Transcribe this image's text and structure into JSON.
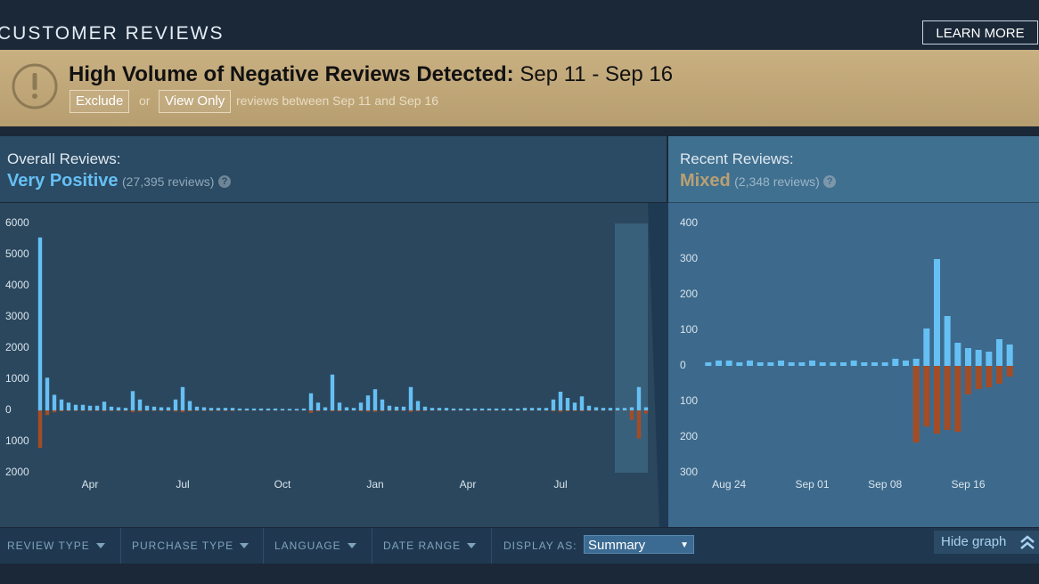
{
  "header": {
    "title": "CUSTOMER REVIEWS",
    "button": "LEARN MORE"
  },
  "banner": {
    "title": "High Volume of Negative Reviews Detected:",
    "dates": "Sep 11 - Sep 16",
    "exclude": "Exclude",
    "or": "or",
    "view_only": "View Only",
    "note": "reviews between Sep 11 and Sep 16"
  },
  "overall": {
    "label": "Overall Reviews:",
    "rating": "Very Positive",
    "count": "(27,395 reviews)",
    "help": "?"
  },
  "recent": {
    "label": "Recent Reviews:",
    "rating": "Mixed",
    "count": "(2,348 reviews)",
    "help": "?"
  },
  "chart_data": [
    {
      "type": "bar",
      "categories": [
        null,
        null,
        null,
        null,
        null,
        null,
        null,
        "Apr",
        null,
        null,
        null,
        null,
        null,
        null,
        null,
        null,
        null,
        null,
        null,
        null,
        "Jul",
        null,
        null,
        null,
        null,
        null,
        null,
        null,
        null,
        null,
        null,
        null,
        null,
        null,
        "Oct",
        null,
        null,
        null,
        null,
        null,
        null,
        null,
        null,
        null,
        null,
        null,
        null,
        "Jan",
        null,
        null,
        null,
        null,
        null,
        null,
        null,
        null,
        null,
        null,
        null,
        null,
        "Apr",
        null,
        null,
        null,
        null,
        null,
        null,
        null,
        null,
        null,
        null,
        null,
        null,
        "Jul",
        null,
        null,
        null,
        null,
        null,
        null,
        null,
        null,
        null,
        null,
        null,
        null
      ],
      "series": [
        {
          "color": "#66c0f4",
          "values": [
            5550,
            1050,
            500,
            350,
            250,
            180,
            180,
            150,
            150,
            280,
            120,
            100,
            80,
            620,
            350,
            150,
            120,
            100,
            100,
            350,
            750,
            300,
            120,
            100,
            80,
            80,
            80,
            80,
            60,
            60,
            60,
            60,
            60,
            60,
            50,
            50,
            50,
            60,
            550,
            250,
            100,
            1150,
            250,
            100,
            80,
            250,
            480,
            680,
            350,
            150,
            120,
            120,
            750,
            300,
            120,
            80,
            80,
            80,
            60,
            60,
            60,
            60,
            60,
            60,
            60,
            60,
            60,
            60,
            80,
            80,
            80,
            80,
            350,
            600,
            400,
            250,
            450,
            150,
            100,
            80,
            80,
            80,
            80,
            100,
            750,
            100
          ]
        },
        {
          "color": "#a34c25",
          "values": [
            -1200,
            -150,
            -60,
            -30,
            -20,
            -20,
            -20,
            -20,
            -20,
            -30,
            -20,
            -20,
            -20,
            -60,
            -40,
            -20,
            -20,
            -20,
            -20,
            -40,
            -60,
            -30,
            -20,
            -20,
            -20,
            -20,
            -20,
            -20,
            -10,
            -10,
            -10,
            -10,
            -10,
            -10,
            -10,
            -10,
            -10,
            -10,
            -80,
            -30,
            -10,
            -30,
            -30,
            -10,
            -10,
            -30,
            -40,
            -50,
            -30,
            -20,
            -20,
            -20,
            -50,
            -30,
            -20,
            -10,
            -10,
            -10,
            -10,
            -10,
            -10,
            -10,
            -10,
            -10,
            -10,
            -10,
            -10,
            -10,
            -10,
            -10,
            -10,
            -10,
            -30,
            -50,
            -30,
            -20,
            -30,
            -20,
            -10,
            -10,
            -10,
            -10,
            -10,
            -300,
            -900,
            -100
          ]
        }
      ],
      "ylim": [
        -2000,
        6000
      ],
      "yticks": [
        6000,
        5000,
        4000,
        3000,
        2000,
        1000,
        0,
        {
          "value": -1000,
          "label": "1000"
        },
        {
          "value": -2000,
          "label": "2000"
        }
      ],
      "grid": false
    },
    {
      "type": "bar",
      "categories": [
        null,
        null,
        "Aug 24",
        null,
        null,
        null,
        null,
        null,
        null,
        null,
        "Sep 01",
        null,
        null,
        null,
        null,
        null,
        null,
        "Sep 08",
        null,
        null,
        null,
        null,
        null,
        null,
        null,
        "Sep 16",
        null,
        null,
        null,
        null
      ],
      "series": [
        {
          "color": "#66c0f4",
          "values": [
            10,
            15,
            15,
            10,
            15,
            10,
            10,
            15,
            10,
            10,
            15,
            10,
            10,
            10,
            15,
            10,
            10,
            10,
            20,
            15,
            20,
            105,
            300,
            140,
            65,
            50,
            45,
            40,
            75,
            60
          ]
        },
        {
          "color": "#a34c25",
          "values": [
            0,
            0,
            0,
            0,
            0,
            0,
            0,
            0,
            0,
            0,
            0,
            0,
            0,
            0,
            0,
            0,
            0,
            0,
            0,
            0,
            -215,
            -170,
            -190,
            -180,
            -185,
            -80,
            -65,
            -60,
            -50,
            -30
          ]
        }
      ],
      "ylim": [
        -300,
        400
      ],
      "yticks": [
        400,
        300,
        200,
        100,
        0,
        {
          "value": -100,
          "label": "100"
        },
        {
          "value": -200,
          "label": "200"
        },
        {
          "value": -300,
          "label": "300"
        }
      ],
      "grid": false
    }
  ],
  "filters": {
    "items": [
      "REVIEW TYPE",
      "PURCHASE TYPE",
      "LANGUAGE",
      "DATE RANGE"
    ],
    "display_as": "DISPLAY AS:",
    "display_value": "Summary",
    "hide_graph": "Hide graph"
  }
}
